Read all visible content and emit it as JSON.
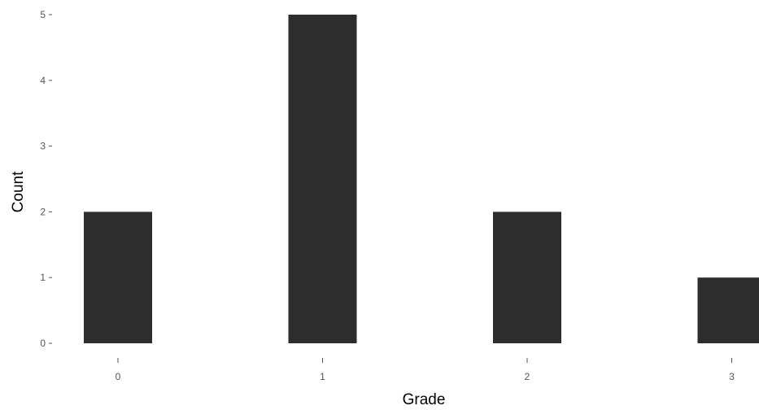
{
  "chart_data": {
    "type": "bar",
    "categories": [
      "0",
      "1",
      "2",
      "3"
    ],
    "values": [
      2,
      5,
      2,
      1
    ],
    "xlabel": "Grade",
    "ylabel": "Count",
    "ylim": [
      0,
      5
    ],
    "yticks": [
      "0",
      "1",
      "2",
      "3",
      "4",
      "5"
    ],
    "grid": false,
    "bar_color": "#2d2d2d"
  }
}
